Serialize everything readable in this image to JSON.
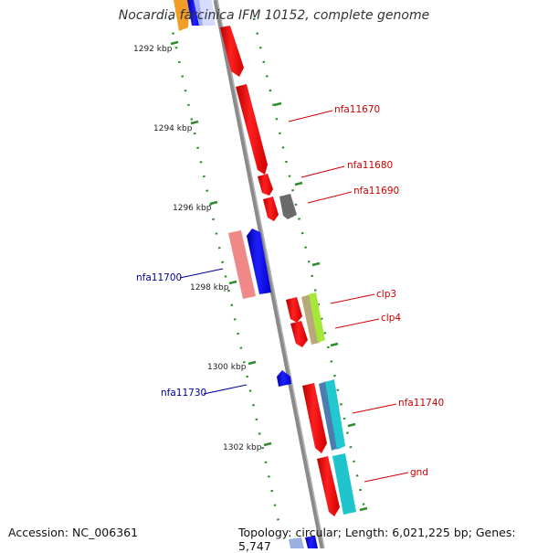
{
  "title": "Nocardia farcinica IFM 10152, complete genome",
  "footer": {
    "accession": "Accession: NC_006361",
    "topology": "Topology: circular; Length: 6,021,225 bp; Genes: 5,747"
  },
  "colors": {
    "forward_label": "#cc0000",
    "reverse_label": "#000099",
    "tick": "#2e8b2e",
    "backbone": "#808080"
  },
  "ticks": [
    "1292 kbp",
    "1294 kbp",
    "1296 kbp",
    "1298 kbp",
    "1300 kbp",
    "1302 kbp"
  ],
  "gene_labels": [
    {
      "text": "nfa11670",
      "strand": "forward"
    },
    {
      "text": "nfa11680",
      "strand": "forward"
    },
    {
      "text": "nfa11690",
      "strand": "forward"
    },
    {
      "text": "nfa11700",
      "strand": "reverse"
    },
    {
      "text": "clp3",
      "strand": "forward"
    },
    {
      "text": "clp4",
      "strand": "forward"
    },
    {
      "text": "nfa11730",
      "strand": "reverse"
    },
    {
      "text": "nfa11740",
      "strand": "forward"
    },
    {
      "text": "gnd",
      "strand": "forward"
    }
  ]
}
